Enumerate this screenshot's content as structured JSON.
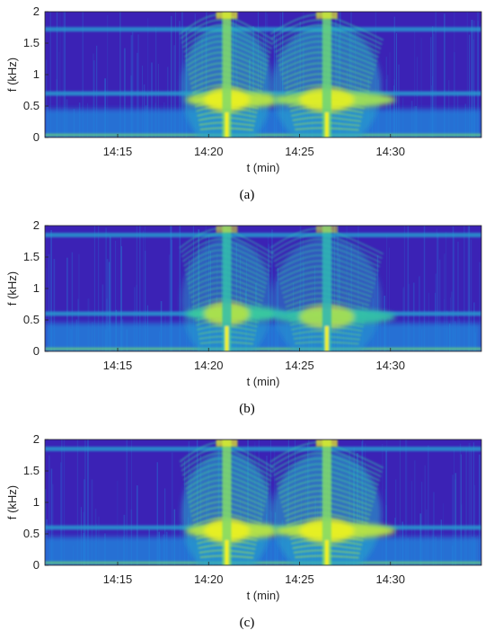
{
  "colors": {
    "background": "#3b22b5",
    "mid": "#1f8fe0",
    "high": "#35c8a0",
    "peak": "#f2f21a",
    "axis": "#262626"
  },
  "chart_data": [
    {
      "type": "heatmap",
      "caption": "(a)",
      "xlabel": "t (min)",
      "ylabel": "f (kHz)",
      "x_ticks": [
        "14:15",
        "14:20",
        "14:25",
        "14:30"
      ],
      "y_ticks": [
        "0",
        "0.5",
        "1",
        "1.5",
        "2"
      ],
      "xlim": [
        "14:11",
        "14:35"
      ],
      "ylim": [
        0,
        2
      ],
      "colormap": "parula",
      "events": [
        {
          "center": "14:21",
          "start": "14:18",
          "end": "14:23",
          "peak_freq_khz": 0.6,
          "intensity": 1.0
        },
        {
          "center": "14:26.5",
          "start": "14:23.5",
          "end": "14:29.5",
          "peak_freq_khz": 0.6,
          "intensity": 0.95
        }
      ],
      "constant_bands_khz": [
        0.04,
        0.7,
        1.72
      ]
    },
    {
      "type": "heatmap",
      "caption": "(b)",
      "xlabel": "t (min)",
      "ylabel": "f (kHz)",
      "x_ticks": [
        "14:15",
        "14:20",
        "14:25",
        "14:30"
      ],
      "y_ticks": [
        "0",
        "0.5",
        "1",
        "1.5",
        "2"
      ],
      "xlim": [
        "14:11",
        "14:35"
      ],
      "ylim": [
        0,
        2
      ],
      "colormap": "parula",
      "events": [
        {
          "center": "14:21",
          "start": "14:18",
          "end": "14:23",
          "peak_freq_khz": 0.6,
          "intensity": 0.75
        },
        {
          "center": "14:26.5",
          "start": "14:23.5",
          "end": "14:29.5",
          "peak_freq_khz": 0.55,
          "intensity": 0.7
        }
      ],
      "constant_bands_khz": [
        0.04,
        0.6,
        1.85
      ]
    },
    {
      "type": "heatmap",
      "caption": "(c)",
      "xlabel": "t (min)",
      "ylabel": "f (kHz)",
      "x_ticks": [
        "14:15",
        "14:20",
        "14:25",
        "14:30"
      ],
      "y_ticks": [
        "0",
        "0.5",
        "1",
        "1.5",
        "2"
      ],
      "xlim": [
        "14:11",
        "14:35"
      ],
      "ylim": [
        0,
        2
      ],
      "colormap": "parula",
      "events": [
        {
          "center": "14:21",
          "start": "14:18",
          "end": "14:23",
          "peak_freq_khz": 0.55,
          "intensity": 1.0
        },
        {
          "center": "14:26.5",
          "start": "14:23.5",
          "end": "14:29.5",
          "peak_freq_khz": 0.55,
          "intensity": 1.0
        }
      ],
      "constant_bands_khz": [
        0.04,
        0.6,
        1.85
      ]
    }
  ]
}
